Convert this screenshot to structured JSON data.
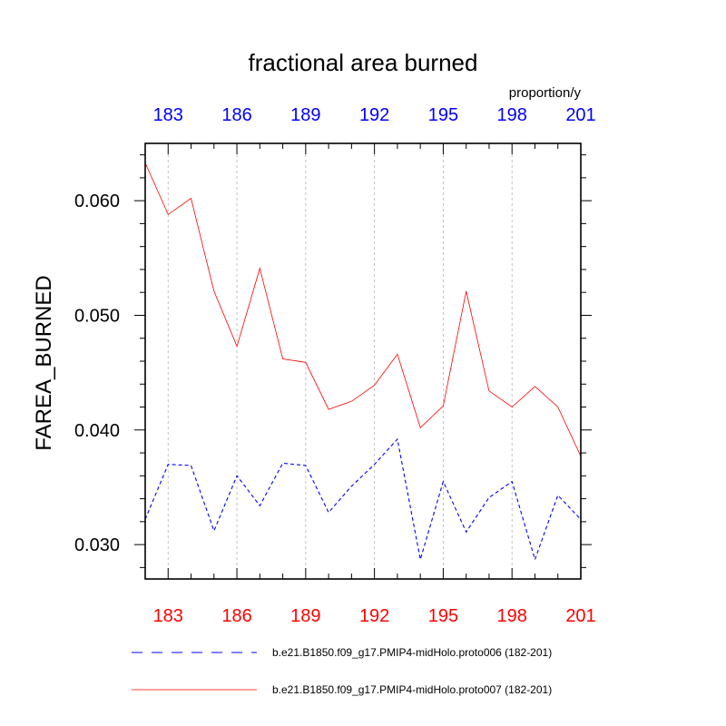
{
  "chart_data": {
    "type": "line",
    "title": "fractional area burned",
    "units": "proportion/y",
    "ylabel": "FAREA_BURNED",
    "xlabel": "",
    "xlim": [
      182,
      201
    ],
    "ylim": [
      0.027,
      0.065
    ],
    "grid": "vertical dashed at major x ticks",
    "x_ticks": [
      183,
      186,
      189,
      192,
      195,
      198,
      201
    ],
    "x_tick_labels_bottom": [
      "183",
      "186",
      "189",
      "192",
      "195",
      "198",
      "201"
    ],
    "x_tick_labels_top": [
      "183",
      "186",
      "189",
      "192",
      "195",
      "198",
      "201"
    ],
    "y_ticks": [
      0.03,
      0.04,
      0.05,
      0.06
    ],
    "y_tick_labels": [
      "0.030",
      "0.040",
      "0.050",
      "0.060"
    ],
    "x": [
      182,
      183,
      184,
      185,
      186,
      187,
      188,
      189,
      190,
      191,
      192,
      193,
      194,
      195,
      196,
      197,
      198,
      199,
      200,
      201
    ],
    "series": [
      {
        "name": "b.e21.B1850.f09_g17.PMIP4-midHolo.proto006 (182-201)",
        "color": "#0000ff",
        "dash": "dashed",
        "values": [
          0.0322,
          0.037,
          0.0369,
          0.0312,
          0.036,
          0.0334,
          0.0371,
          0.0369,
          0.0328,
          0.0351,
          0.037,
          0.0392,
          0.0287,
          0.0355,
          0.0311,
          0.0341,
          0.0355,
          0.0287,
          0.0343,
          0.0322
        ]
      },
      {
        "name": "b.e21.B1850.f09_g17.PMIP4-midHolo.proto007 (182-201)",
        "color": "#ff0000",
        "dash": "solid",
        "values": [
          0.0633,
          0.0588,
          0.0602,
          0.0521,
          0.0473,
          0.0541,
          0.0462,
          0.0459,
          0.0418,
          0.0425,
          0.0439,
          0.0466,
          0.0402,
          0.0421,
          0.0521,
          0.0434,
          0.042,
          0.0438,
          0.042,
          0.0377
        ]
      }
    ],
    "bottom_tick_color": "#ff0000",
    "top_tick_color": "#0000ff",
    "legend_position": "bottom"
  }
}
